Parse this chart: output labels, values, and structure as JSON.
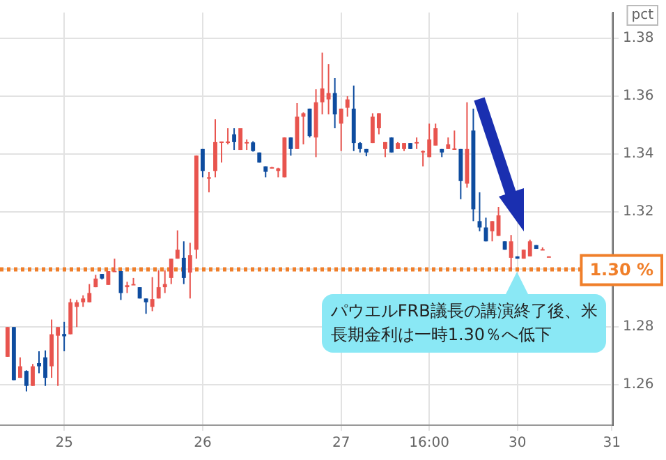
{
  "chart_data": {
    "type": "candlestick",
    "ylabel": "pct",
    "categories": [
      null,
      null,
      null,
      null,
      null,
      null,
      null,
      null,
      null,
      "25",
      null,
      null,
      null,
      null,
      null,
      null,
      null,
      null,
      null,
      null,
      null,
      null,
      null,
      null,
      null,
      null,
      null,
      null,
      null,
      null,
      null,
      "26",
      null,
      null,
      null,
      null,
      null,
      null,
      null,
      null,
      null,
      null,
      null,
      null,
      null,
      null,
      null,
      null,
      null,
      null,
      null,
      null,
      null,
      "27",
      null,
      null,
      null,
      null,
      null,
      null,
      null,
      null,
      null,
      null,
      null,
      null,
      null,
      "16:00",
      null,
      null,
      null,
      null,
      null,
      null,
      null,
      null,
      null,
      null,
      null,
      null,
      null,
      "30",
      null,
      null,
      null,
      null,
      null,
      null,
      null,
      null,
      null,
      null,
      null,
      null,
      null,
      null,
      "31"
    ],
    "ohlc": [
      [
        1.2697,
        1.28,
        1.2697,
        1.28
      ],
      [
        1.28,
        1.28,
        1.2616,
        1.2616
      ],
      [
        1.2624,
        1.2695,
        1.2624,
        1.2664
      ],
      [
        1.2648,
        1.265,
        1.2577,
        1.2596
      ],
      [
        1.2596,
        1.2672,
        1.2596,
        1.2664
      ],
      [
        1.2675,
        1.2716,
        1.264,
        1.2664
      ],
      [
        1.2695,
        1.2719,
        1.2596,
        1.2624
      ],
      [
        1.2664,
        1.2826,
        1.2624,
        1.2775
      ],
      [
        1.277,
        1.28,
        1.2596,
        1.28
      ],
      [
        1.2776,
        1.2818,
        1.2716,
        1.2768
      ],
      [
        1.2775,
        1.2898,
        1.2775,
        1.2886
      ],
      [
        1.287,
        1.2894,
        1.28,
        1.2886
      ],
      [
        1.2886,
        1.291,
        1.287,
        1.2899
      ],
      [
        1.2886,
        1.2949,
        1.2886,
        1.2918
      ],
      [
        1.2938,
        1.2981,
        1.2938,
        1.2968
      ],
      [
        1.2984,
        1.2984,
        1.2965,
        1.2968
      ],
      [
        1.2946,
        1.2994,
        1.2946,
        1.2994
      ],
      [
        1.2994,
        1.3037,
        1.2994,
        1.2995
      ],
      [
        1.2994,
        1.2994,
        1.2894,
        1.2918
      ],
      [
        1.2938,
        1.2957,
        1.2918,
        1.2945
      ],
      [
        1.2946,
        1.297,
        1.2946,
        1.2949
      ],
      [
        1.2938,
        1.2938,
        1.2899,
        1.2899
      ],
      [
        1.2899,
        1.2899,
        1.2846,
        1.2886
      ],
      [
        1.287,
        1.2973,
        1.2855,
        1.2897
      ],
      [
        1.2899,
        1.2997,
        1.2899,
        1.2938
      ],
      [
        1.2938,
        1.2997,
        1.2918,
        1.2949
      ],
      [
        1.297,
        1.3037,
        1.2949,
        1.3037
      ],
      [
        1.3037,
        1.3135,
        1.3037,
        1.3068
      ],
      [
        1.304,
        1.3097,
        1.2949,
        1.297
      ],
      [
        1.2989,
        1.3092,
        1.2899,
        1.3049
      ],
      [
        1.3068,
        1.3394,
        1.3037,
        1.3394
      ],
      [
        1.3417,
        1.3417,
        1.3319,
        1.3341
      ],
      [
        1.3315,
        1.3337,
        1.3267,
        1.3319
      ],
      [
        1.3341,
        1.352,
        1.3319,
        1.3441
      ],
      [
        1.3441,
        1.3443,
        1.337,
        1.3443
      ],
      [
        1.3441,
        1.3489,
        1.3433,
        1.3443
      ],
      [
        1.3468,
        1.3489,
        1.3414,
        1.3441
      ],
      [
        1.3414,
        1.3489,
        1.3414,
        1.3489
      ],
      [
        1.344,
        1.345,
        1.3414,
        1.3441
      ],
      [
        1.344,
        1.3444,
        1.3408,
        1.341
      ],
      [
        1.3405,
        1.3405,
        1.337,
        1.337
      ],
      [
        1.3357,
        1.3357,
        1.3319,
        1.3338
      ],
      [
        1.3352,
        1.3355,
        1.335,
        1.3354
      ],
      [
        1.3341,
        1.3352,
        1.3319,
        1.335
      ],
      [
        1.3319,
        1.3457,
        1.3319,
        1.3457
      ],
      [
        1.3457,
        1.3457,
        1.3394,
        1.3417
      ],
      [
        1.3417,
        1.3576,
        1.3417,
        1.3529
      ],
      [
        1.3529,
        1.3544,
        1.3433,
        1.3541
      ],
      [
        1.3557,
        1.3557,
        1.3457,
        1.3462
      ],
      [
        1.3457,
        1.3624,
        1.3389,
        1.3579
      ],
      [
        1.3579,
        1.3751,
        1.3537,
        1.3627
      ],
      [
        1.3589,
        1.3711,
        1.3537,
        1.3611
      ],
      [
        1.3611,
        1.3663,
        1.3489,
        1.3537
      ],
      [
        1.3505,
        1.3557,
        1.341,
        1.3557
      ],
      [
        1.356,
        1.36,
        1.3529,
        1.3589
      ],
      [
        1.3557,
        1.3637,
        1.341,
        1.3438
      ],
      [
        1.3438,
        1.3441,
        1.3405,
        1.3417
      ],
      [
        1.3417,
        1.3417,
        1.3392,
        1.3405
      ],
      [
        1.3438,
        1.3541,
        1.3438,
        1.3529
      ],
      [
        1.3489,
        1.3541,
        1.3468,
        1.3541
      ],
      [
        1.3417,
        1.3441,
        1.3389,
        1.3441
      ],
      [
        1.3457,
        1.3457,
        1.3405,
        1.3405
      ],
      [
        1.3417,
        1.3441,
        1.3417,
        1.3438
      ],
      [
        1.3417,
        1.3438,
        1.341,
        1.3438
      ],
      [
        1.3438,
        1.3438,
        1.3417,
        1.3417
      ],
      [
        1.344,
        1.3457,
        1.3417,
        1.3441
      ],
      [
        1.3408,
        1.3412,
        1.3357,
        1.341
      ],
      [
        1.3389,
        1.3505,
        1.3389,
        1.345
      ],
      [
        1.3429,
        1.3505,
        1.3429,
        1.3489
      ],
      [
        1.3417,
        1.3417,
        1.3389,
        1.3405
      ],
      [
        1.3417,
        1.3457,
        1.3417,
        1.3433
      ],
      [
        1.3417,
        1.3481,
        1.3417,
        1.3419
      ],
      [
        1.3417,
        1.3417,
        1.3243,
        1.3306
      ],
      [
        1.3297,
        1.3579,
        1.3283,
        1.3417
      ],
      [
        1.3481,
        1.3557,
        1.3167,
        1.3208
      ],
      [
        1.3167,
        1.3267,
        1.3132,
        1.3145
      ],
      [
        1.3145,
        1.3179,
        1.3097,
        1.3097
      ],
      [
        1.3132,
        1.3167,
        1.3097,
        1.3167
      ],
      [
        1.3116,
        1.3216,
        1.3116,
        1.3187
      ],
      [
        1.3097,
        1.3097,
        1.3068,
        1.3068
      ],
      [
        1.304,
        1.3119,
        1.3,
        1.3097
      ],
      [
        1.3045,
        1.3045,
        1.3037,
        1.3037
      ],
      [
        1.3037,
        1.3068,
        1.3037,
        1.3068
      ],
      [
        1.3045,
        1.3103,
        1.3045,
        1.3097
      ],
      [
        1.3084,
        1.3084,
        1.3071,
        1.3071
      ],
      [
        1.3068,
        1.3076,
        1.3068,
        1.307
      ],
      [
        1.3044,
        1.3045,
        1.3044,
        1.3045
      ],
      null,
      null,
      null,
      null,
      null,
      null,
      null,
      null,
      null,
      null
    ],
    "colors": [
      "#e8544e",
      "#0e4c9f",
      "#e8544e",
      "#0e4c9f",
      "#e8544e",
      "#0e4c9f",
      "#0e4c9f",
      "#e8544e",
      "#e8544e",
      "#0e4c9f",
      "#e8544e",
      "#e8544e",
      "#e8544e",
      "#e8544e",
      "#e8544e",
      "#0e4c9f",
      "#e8544e",
      "#e8544e",
      "#0e4c9f",
      "#e8544e",
      "#e8544e",
      "#0e4c9f",
      "#0e4c9f",
      "#e8544e",
      "#e8544e",
      "#e8544e",
      "#e8544e",
      "#e8544e",
      "#0e4c9f",
      "#e8544e",
      "#e8544e",
      "#0e4c9f",
      "#e8544e",
      "#e8544e",
      "#e8544e",
      "#e8544e",
      "#0e4c9f",
      "#e8544e",
      "#e8544e",
      "#0e4c9f",
      "#0e4c9f",
      "#0e4c9f",
      "#e8544e",
      "#e8544e",
      "#e8544e",
      "#0e4c9f",
      "#e8544e",
      "#e8544e",
      "#0e4c9f",
      "#e8544e",
      "#e8544e",
      "#e8544e",
      "#0e4c9f",
      "#e8544e",
      "#e8544e",
      "#0e4c9f",
      "#0e4c9f",
      "#0e4c9f",
      "#e8544e",
      "#e8544e",
      "#e8544e",
      "#0e4c9f",
      "#e8544e",
      "#e8544e",
      "#0e4c9f",
      "#e8544e",
      "#e8544e",
      "#e8544e",
      "#e8544e",
      "#0e4c9f",
      "#e8544e",
      "#e8544e",
      "#0e4c9f",
      "#e8544e",
      "#0e4c9f",
      "#0e4c9f",
      "#0e4c9f",
      "#e8544e",
      "#e8544e",
      "#0e4c9f",
      "#e8544e",
      "#0e4c9f",
      "#e8544e",
      "#e8544e",
      "#0e4c9f",
      "#e8544e",
      "#e8544e",
      null,
      null,
      null,
      null,
      null,
      null,
      null,
      null,
      null,
      null
    ],
    "ylim": [
      1.246,
      1.389
    ],
    "yticks": [
      1.26,
      1.28,
      {
        "value": 1.3,
        "label": null
      },
      1.32,
      1.34,
      1.36,
      1.38
    ],
    "grid": true,
    "legend": false,
    "ref_lines": [
      {
        "axis": "y",
        "value": 1.3,
        "label": "1.30 %",
        "color": "#f07f2a",
        "line_style": "dotted"
      }
    ],
    "annotations": [
      {
        "text": "パウエルFRB議長の講演終了後、米長期金利は一時1.30％へ低下",
        "x": "30",
        "y": 1.3
      }
    ]
  }
}
